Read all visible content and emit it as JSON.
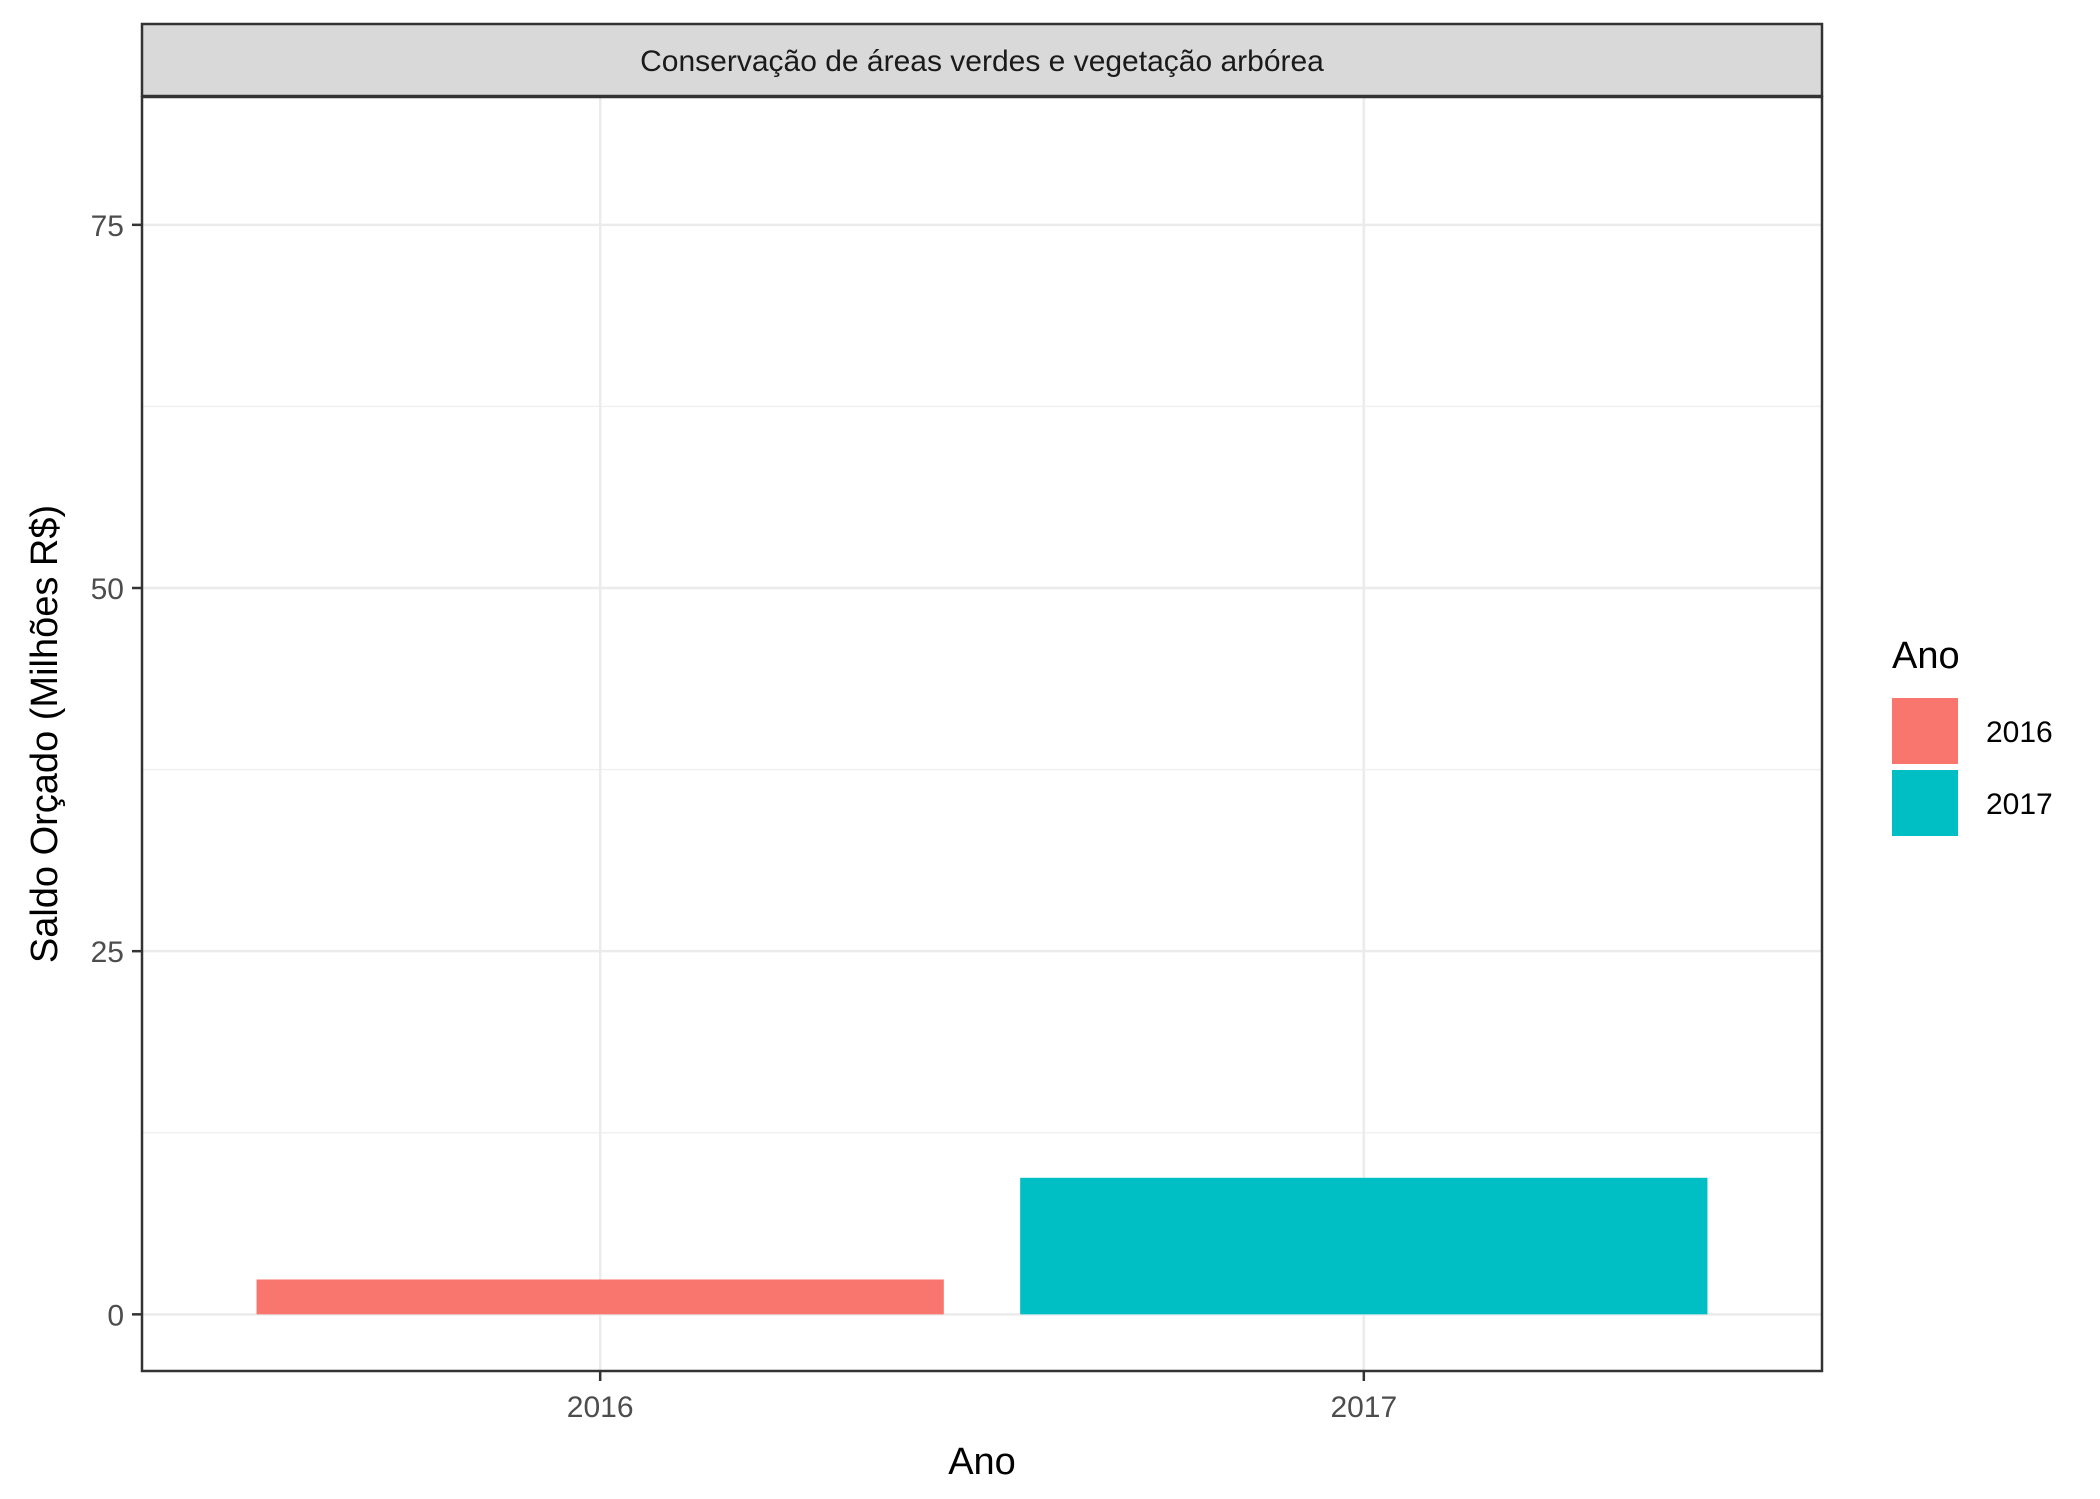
{
  "chart_data": {
    "type": "bar",
    "facet_title": "Conservação de áreas verdes e vegetação arbórea",
    "categories": [
      "2016",
      "2017"
    ],
    "values": [
      2.4,
      9.4
    ],
    "colors": [
      "#F8766D",
      "#00BFC4"
    ],
    "xlabel": "Ano",
    "ylabel": "Saldo Orçado (Milhões R$)",
    "ylim": [
      -3.9,
      83.8
    ],
    "yticks": [
      0,
      25,
      50,
      75
    ],
    "ytick_labels": [
      "0",
      "25",
      "50",
      "75"
    ],
    "grid": true,
    "legend": {
      "title": "Ano",
      "position": "right",
      "entries": [
        {
          "label": "2016",
          "color": "#F8766D"
        },
        {
          "label": "2017",
          "color": "#00BFC4"
        }
      ]
    }
  }
}
